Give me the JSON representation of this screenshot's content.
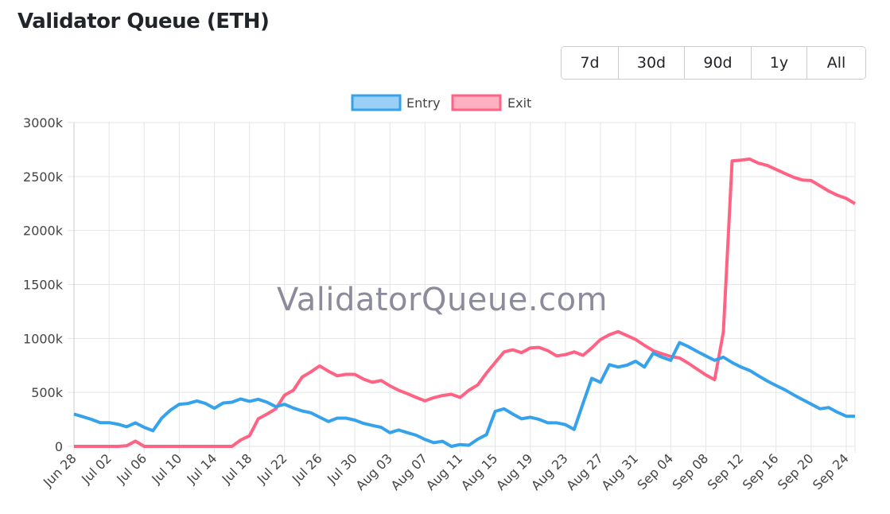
{
  "header": {
    "title": "Validator Queue (ETH)"
  },
  "range_buttons": [
    "7d",
    "30d",
    "90d",
    "1y",
    "All"
  ],
  "watermark": "ValidatorQueue.com",
  "colors": {
    "entry": "#36a2eb",
    "exit": "#ff6384",
    "entry_fill": "#9ad0f5",
    "exit_fill": "#ffb1c1",
    "grid": "#e5e5e5"
  },
  "chart_data": {
    "type": "line",
    "title": "",
    "xlabel": "",
    "ylabel": "",
    "ylim": [
      0,
      3000
    ],
    "y_ticks": [
      "0",
      "500k",
      "1000k",
      "1500k",
      "2000k",
      "2500k",
      "3000k"
    ],
    "grid": true,
    "legend": "top-center",
    "x": [
      "Jun 28",
      "Jun 29",
      "Jun 30",
      "Jul 01",
      "Jul 02",
      "Jul 03",
      "Jul 04",
      "Jul 05",
      "Jul 06",
      "Jul 07",
      "Jul 08",
      "Jul 09",
      "Jul 10",
      "Jul 11",
      "Jul 12",
      "Jul 13",
      "Jul 14",
      "Jul 15",
      "Jul 16",
      "Jul 17",
      "Jul 18",
      "Jul 19",
      "Jul 20",
      "Jul 21",
      "Jul 22",
      "Jul 23",
      "Jul 24",
      "Jul 25",
      "Jul 26",
      "Jul 27",
      "Jul 28",
      "Jul 29",
      "Jul 30",
      "Jul 31",
      "Aug 01",
      "Aug 02",
      "Aug 03",
      "Aug 04",
      "Aug 05",
      "Aug 06",
      "Aug 07",
      "Aug 08",
      "Aug 09",
      "Aug 10",
      "Aug 11",
      "Aug 12",
      "Aug 13",
      "Aug 14",
      "Aug 15",
      "Aug 16",
      "Aug 17",
      "Aug 18",
      "Aug 19",
      "Aug 20",
      "Aug 21",
      "Aug 22",
      "Aug 23",
      "Aug 24",
      "Aug 25",
      "Aug 26",
      "Aug 27",
      "Aug 28",
      "Aug 29",
      "Aug 30",
      "Aug 31",
      "Sep 01",
      "Sep 02",
      "Sep 03",
      "Sep 04",
      "Sep 05",
      "Sep 06",
      "Sep 07",
      "Sep 08",
      "Sep 09",
      "Sep 10",
      "Sep 11",
      "Sep 12",
      "Sep 13",
      "Sep 14",
      "Sep 15",
      "Sep 16",
      "Sep 17",
      "Sep 18",
      "Sep 19",
      "Sep 20",
      "Sep 21",
      "Sep 22",
      "Sep 23",
      "Sep 24",
      "Sep 25"
    ],
    "x_ticks": [
      "Jun 28",
      "Jul 02",
      "Jul 06",
      "Jul 10",
      "Jul 14",
      "Jul 18",
      "Jul 22",
      "Jul 26",
      "Jul 30",
      "Aug 03",
      "Aug 07",
      "Aug 11",
      "Aug 15",
      "Aug 19",
      "Aug 23",
      "Aug 27",
      "Aug 31",
      "Sep 04",
      "Sep 08",
      "Sep 12",
      "Sep 16",
      "Sep 20",
      "Sep 24"
    ],
    "series": [
      {
        "name": "Entry",
        "values": [
          299,
          275,
          250,
          220,
          220,
          206,
          181,
          218,
          176,
          145,
          262,
          336,
          390,
          397,
          421,
          397,
          353,
          402,
          409,
          439,
          417,
          436,
          409,
          368,
          390,
          355,
          328,
          311,
          270,
          230,
          262,
          262,
          243,
          213,
          194,
          176,
          127,
          152,
          127,
          103,
          64,
          34,
          47,
          0,
          17,
          10,
          66,
          108,
          324,
          348,
          299,
          255,
          270,
          250,
          218,
          218,
          201,
          157,
          397,
          630,
          593,
          757,
          735,
          752,
          789,
          735,
          863,
          826,
          797,
          961,
          924,
          880,
          838,
          797,
          826,
          777,
          735,
          703,
          654,
          605,
          564,
          525,
          478,
          434,
          392,
          348,
          360,
          316,
          279,
          279
        ]
      },
      {
        "name": "Exit",
        "values": [
          0,
          0,
          0,
          0,
          0,
          0,
          5,
          49,
          0,
          0,
          0,
          0,
          0,
          0,
          0,
          0,
          0,
          0,
          0,
          59,
          98,
          255,
          299,
          348,
          475,
          520,
          642,
          691,
          745,
          696,
          654,
          667,
          667,
          623,
          593,
          610,
          561,
          520,
          488,
          453,
          422,
          451,
          471,
          483,
          453,
          520,
          569,
          679,
          777,
          875,
          895,
          868,
          912,
          917,
          887,
          838,
          850,
          875,
          843,
          912,
          990,
          1034,
          1064,
          1027,
          990,
          936,
          887,
          858,
          833,
          819,
          770,
          716,
          662,
          618,
          1060,
          2645,
          2652,
          2662,
          2623,
          2603,
          2566,
          2529,
          2493,
          2468,
          2463,
          2414,
          2365,
          2326,
          2297,
          2248
        ]
      }
    ]
  }
}
